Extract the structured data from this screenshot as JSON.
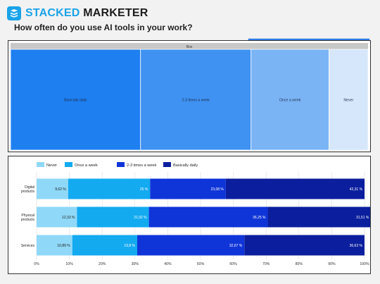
{
  "header": {
    "brand_part1": "STACKED",
    "brand_part2": "MARKETER",
    "question": "How often do you use AI tools in your work?"
  },
  "colors": {
    "brand": "#1aa3e8",
    "treemap": [
      "#1e7ff0",
      "#3f92f2",
      "#7ab4f5",
      "#d6e7fb"
    ],
    "bars": [
      "#8fd8f7",
      "#13aaf0",
      "#0f35d8",
      "#0b1f9e"
    ]
  },
  "chart_data": [
    {
      "type": "treemap",
      "title": "Box",
      "categories": [
        "Basically daily",
        "2-3 times a week",
        "Once a week",
        "Never"
      ],
      "values": [
        40,
        34,
        24,
        12
      ]
    },
    {
      "type": "bar",
      "orientation": "horizontal",
      "stacked": true,
      "legend_position": "top-left",
      "categories": [
        "Digital products",
        "Physical products",
        "Services"
      ],
      "series": [
        {
          "name": "Never",
          "values": [
            9.62,
            12.33,
            10.89
          ],
          "labels": [
            "9,62 %",
            "12,33 %",
            "10,89 %"
          ]
        },
        {
          "name": "Once a week",
          "values": [
            25,
            21.92,
            19.8
          ],
          "labels": [
            "25 %",
            "21,92 %",
            "19,8 %"
          ]
        },
        {
          "name": "2-3 times a week",
          "values": [
            23.08,
            36.25,
            32.67
          ],
          "labels": [
            "23,08 %",
            "36,25 %",
            "32,67 %"
          ]
        },
        {
          "name": "Basically daily",
          "values": [
            42.31,
            31.51,
            36.63
          ],
          "labels": [
            "42,31 %",
            "31,51 %",
            "36,63 %"
          ]
        }
      ],
      "xlim": [
        0,
        100
      ],
      "x_ticks": [
        "0%",
        "10%",
        "20%",
        "30%",
        "40%",
        "50%",
        "60%",
        "70%",
        "80%",
        "90%",
        "100%"
      ],
      "grid": true
    }
  ]
}
